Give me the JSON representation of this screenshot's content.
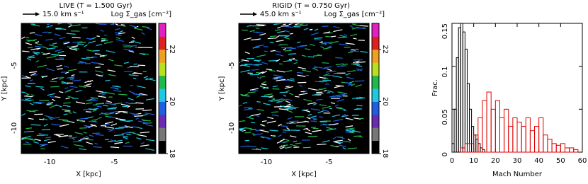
{
  "chart_data": [
    {
      "type": "map",
      "title": "LIVE (T = 1.500 Gyr)",
      "arrow_label": "15.0 km s⁻¹",
      "colorbar_label": "Log Σ_gas [cm⁻²]",
      "xlabel": "X [kpc]",
      "ylabel": "Y [kpc]",
      "xlim": [
        -12.2,
        -1.8
      ],
      "xticks": [
        -10,
        -5
      ],
      "ylim": [
        -12.6,
        -1.8
      ],
      "yticks": [
        -10,
        -5
      ],
      "clim": [
        18,
        23
      ],
      "cticks": [
        18,
        20,
        22
      ],
      "colormap": [
        "#000000",
        "#777777",
        "#6a2bb0",
        "#1f5fe0",
        "#1ec8e0",
        "#22b84a",
        "#b8e020",
        "#f0a020",
        "#e02020",
        "#e020c0"
      ]
    },
    {
      "type": "map",
      "title": "RIGID (T = 0.750 Gyr)",
      "arrow_label": "45.0 km s⁻¹",
      "colorbar_label": "Log Σ_gas [cm⁻²]",
      "xlabel": "X [kpc]",
      "ylabel": "Y [kpc]",
      "xlim": [
        -12.2,
        -1.8
      ],
      "xticks": [
        -10,
        -5
      ],
      "ylim": [
        -12.6,
        -1.8
      ],
      "yticks": [
        -10,
        -5
      ],
      "clim": [
        18,
        23
      ],
      "cticks": [
        18,
        20,
        22
      ],
      "colormap": [
        "#000000",
        "#777777",
        "#6a2bb0",
        "#1f5fe0",
        "#1ec8e0",
        "#22b84a",
        "#b8e020",
        "#f0a020",
        "#e02020",
        "#e020c0"
      ]
    },
    {
      "type": "histogram",
      "xlabel": "Mach Number",
      "ylabel": "Frac.",
      "xlim": [
        0,
        60
      ],
      "xticks": [
        0,
        10,
        20,
        30,
        40,
        50,
        60
      ],
      "ylim": [
        0,
        0.15
      ],
      "yticks": [
        0,
        0.05,
        0.1,
        0.15
      ],
      "series": [
        {
          "color": "#000000",
          "bins": [
            0,
            1,
            2,
            3,
            4,
            5,
            6,
            7,
            8,
            9,
            10,
            11,
            12,
            13,
            14,
            15
          ],
          "values": [
            0.01,
            0.05,
            0.11,
            0.145,
            0.15,
            0.14,
            0.12,
            0.08,
            0.05,
            0.03,
            0.02,
            0.015,
            0.01,
            0.005,
            0.003
          ]
        },
        {
          "color": "#e00000",
          "bins": [
            4,
            6,
            8,
            10,
            12,
            14,
            16,
            18,
            20,
            22,
            24,
            26,
            28,
            30,
            32,
            34,
            36,
            38,
            40,
            42,
            44,
            46,
            48,
            50,
            52,
            54,
            56,
            58
          ],
          "values": [
            0.005,
            0.01,
            0.01,
            0.02,
            0.04,
            0.06,
            0.07,
            0.05,
            0.06,
            0.04,
            0.05,
            0.03,
            0.04,
            0.035,
            0.03,
            0.04,
            0.025,
            0.03,
            0.04,
            0.02,
            0.015,
            0.01,
            0.008,
            0.01,
            0.005,
            0.005,
            0.003
          ]
        }
      ]
    }
  ]
}
